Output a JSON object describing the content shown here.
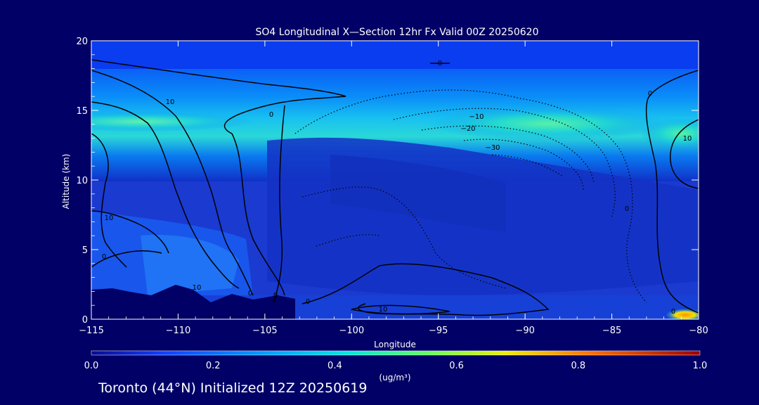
{
  "chart_data": {
    "type": "heatmap",
    "title": "SO4 Longitudinal X—Section 12hr  Fx Valid 00Z 20250620",
    "xlabel": "Longitude",
    "ylabel": "Altitude (km)",
    "xlim": [
      -115,
      -80
    ],
    "ylim": [
      0,
      20
    ],
    "xticks": [
      -115,
      -110,
      -105,
      -100,
      -95,
      -90,
      -85,
      -80
    ],
    "xtick_labels": [
      "−115",
      "−110",
      "−105",
      "−100",
      "−95",
      "−90",
      "−85",
      "−80"
    ],
    "yticks": [
      0,
      5,
      10,
      15,
      20
    ],
    "ytick_labels": [
      "0",
      "5",
      "10",
      "15",
      "20"
    ],
    "colorbar": {
      "min": 0.0,
      "max": 1.0,
      "ticks": [
        "0.0",
        "0.2",
        "0.4",
        "0.6",
        "0.8",
        "1.0"
      ],
      "unit_label": "(ug/m³)"
    },
    "plumes": [
      {
        "lon_range": [
          -115,
          -108
        ],
        "alt_km": 14.3,
        "value": 0.45
      },
      {
        "lon_range": [
          -96,
          -84
        ],
        "alt_km": 14.2,
        "value": 0.5
      },
      {
        "lon_range": [
          -84,
          -80
        ],
        "alt_km": 13.5,
        "value": 0.4
      },
      {
        "lon_range": [
          -81.5,
          -80
        ],
        "alt_km": 0.3,
        "value": 0.8
      }
    ],
    "contour_labels": [
      "0",
      "10",
      "0",
      "10",
      "0",
      "10",
      "0",
      "0",
      "0",
      "10",
      "−10",
      "−20",
      "−30",
      "0",
      "10",
      "0",
      "0"
    ]
  },
  "footer": "Toronto (44°N) Initialized 12Z 20250619",
  "colors": {
    "background": "#000066",
    "field_low": "#1a33cc",
    "plume": "#33e0a0",
    "hotspot": "#ffaa00"
  }
}
